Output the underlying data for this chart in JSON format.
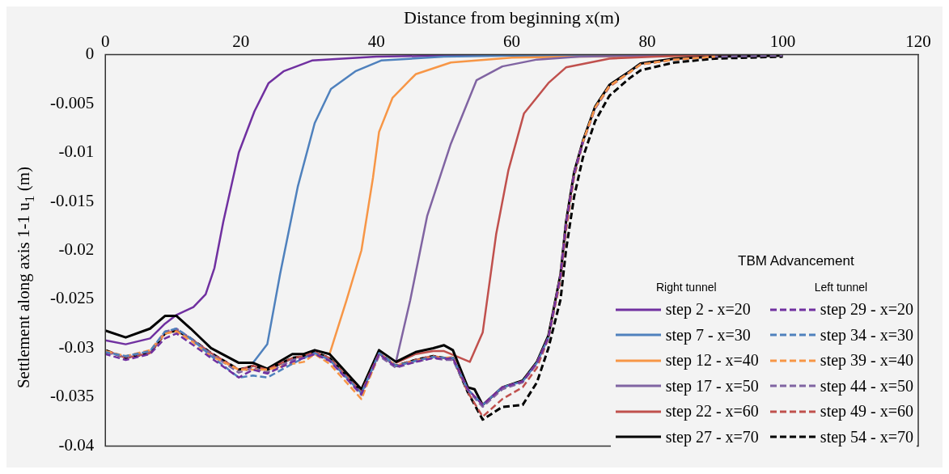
{
  "chart_data": {
    "type": "line",
    "xlabel": "Distance from beginning x(m)",
    "ylabel": "Settlement along axis 1-1 u$_{1}$ (m)",
    "legend_title": "TBM Advancement",
    "annotations": [
      "Right tunnel",
      "Left tunnel"
    ],
    "xlim": [
      0,
      120
    ],
    "xticks": [
      0,
      20,
      40,
      60,
      80,
      100,
      120
    ],
    "ylim": [
      -0.04,
      0
    ],
    "yticks": [
      0,
      -0.005,
      -0.01,
      -0.015,
      -0.02,
      -0.025,
      -0.03,
      -0.035,
      -0.04
    ],
    "grid": false,
    "legend": "bottom right",
    "marker": "none",
    "line_style": "solid",
    "series": [
      {
        "name": "step 2 - x=20",
        "color": "#7030a0",
        "x": [
          0,
          3,
          6.6,
          8.8,
          10.5,
          13,
          14.8,
          16.1,
          17.4,
          19.7,
          22,
          24.1,
          26.3,
          30.5,
          40,
          50,
          100
        ],
        "values": [
          -0.0292,
          -0.0296,
          -0.029,
          -0.0275,
          -0.0266,
          -0.0258,
          -0.0245,
          -0.0218,
          -0.0171,
          -0.01,
          -0.0058,
          -0.0029,
          -0.0017,
          -0.0006,
          -0.0002,
          -0.0001,
          -0.0001
        ]
      },
      {
        "name": "step 7 - x=30",
        "color": "#4f81bd",
        "x": [
          21.8,
          23.9,
          25.8,
          28.4,
          30.9,
          33.3,
          36.9,
          40.7,
          50,
          60,
          100
        ],
        "values": [
          -0.0315,
          -0.0296,
          -0.0224,
          -0.0135,
          -0.007,
          -0.0035,
          -0.0017,
          -0.0006,
          -0.0002,
          -0.0001,
          -0.0001
        ]
      },
      {
        "name": "step 12 - x=40",
        "color": "#f79646",
        "x": [
          33.1,
          35.6,
          37.8,
          39.5,
          40.4,
          42.4,
          45.8,
          51,
          60,
          70,
          100
        ],
        "values": [
          -0.0306,
          -0.0251,
          -0.02,
          -0.0126,
          -0.0079,
          -0.0044,
          -0.002,
          -0.0008,
          -0.0003,
          -0.0002,
          -0.0001
        ]
      },
      {
        "name": "step 17 - x=50",
        "color": "#8064a2",
        "x": [
          42.9,
          45,
          47.5,
          51,
          54.8,
          58.6,
          63.7,
          70,
          80,
          100
        ],
        "values": [
          -0.0314,
          -0.0251,
          -0.0165,
          -0.0091,
          -0.0026,
          -0.0012,
          -0.0005,
          -0.0002,
          -0.0001,
          -0.0001
        ]
      },
      {
        "name": "step 22 - x=60",
        "color": "#c0504d",
        "x": [
          42.9,
          45.8,
          48.4,
          50,
          53.8,
          55.7,
          57.7,
          59.5,
          61.8,
          65.4,
          68,
          74.4,
          85,
          100
        ],
        "values": [
          -0.0315,
          -0.0306,
          -0.0303,
          -0.0303,
          -0.0314,
          -0.0284,
          -0.0183,
          -0.0118,
          -0.006,
          -0.0029,
          -0.0013,
          -0.0004,
          -0.0001,
          -0.0001
        ]
      },
      {
        "name": "step 27 - x=70",
        "color": "#000000",
        "x": [
          0,
          3,
          6.6,
          8.8,
          10.5,
          12.6,
          15.6,
          19.7,
          21.8,
          23.9,
          27.6,
          29.3,
          30.9,
          33.1,
          37.8,
          40.4,
          42.9,
          45.8,
          48.4,
          50,
          51.3,
          53.5,
          54.5,
          55.7,
          58.6,
          61.6,
          63.7,
          65.4,
          67.2,
          68,
          69.2,
          70.5,
          72.3,
          74.4,
          77.4,
          79,
          84,
          90,
          100
        ],
        "values": [
          -0.0282,
          -0.0289,
          -0.028,
          -0.0267,
          -0.0267,
          -0.028,
          -0.03,
          -0.0315,
          -0.0315,
          -0.0321,
          -0.0306,
          -0.0306,
          -0.0302,
          -0.0306,
          -0.0342,
          -0.0302,
          -0.0314,
          -0.0304,
          -0.03,
          -0.0297,
          -0.0302,
          -0.034,
          -0.0342,
          -0.0358,
          -0.034,
          -0.0333,
          -0.0314,
          -0.0287,
          -0.0224,
          -0.0171,
          -0.012,
          -0.0088,
          -0.0053,
          -0.0031,
          -0.0017,
          -0.0009,
          -0.0004,
          -0.0002,
          -0.0001
        ]
      },
      {
        "name": "step 29 - x=20",
        "color": "#7030a0",
        "line_style": "dashed",
        "x": [
          0,
          3,
          6.6,
          8.8,
          10.5,
          12.6,
          15.6,
          19.7,
          21.8,
          23.9,
          27.6,
          29.3,
          30.9,
          33.1,
          37.8,
          40.4,
          42.9,
          45.8,
          48.4,
          50,
          51.3,
          53.5,
          55.7,
          58.6,
          61.6,
          63.7,
          65.4,
          67.2,
          68,
          69.2,
          70.5
        ],
        "values": [
          -0.0306,
          -0.0312,
          -0.0306,
          -0.029,
          -0.0285,
          -0.0295,
          -0.031,
          -0.033,
          -0.0322,
          -0.0326,
          -0.0314,
          -0.031,
          -0.0306,
          -0.0313,
          -0.0347,
          -0.0306,
          -0.0319,
          -0.0314,
          -0.031,
          -0.0311,
          -0.031,
          -0.0342,
          -0.0358,
          -0.034,
          -0.0334,
          -0.0315,
          -0.0289,
          -0.0225,
          -0.0172,
          -0.0121,
          -0.0089
        ]
      },
      {
        "name": "step 34 - x=30",
        "color": "#4f81bd",
        "line_style": "dashed",
        "x": [
          0,
          3,
          6.6,
          8.8,
          10.5,
          12.6,
          15.6,
          19.7,
          21.8,
          23.9,
          27.6,
          29.3,
          30.9,
          33.1,
          37.8,
          40.4,
          42.9,
          45.8,
          48.4,
          50,
          51.3,
          53.5,
          55.7,
          58.6,
          61.6,
          63.7,
          65.4
        ],
        "values": [
          -0.0304,
          -0.0308,
          -0.0303,
          -0.0283,
          -0.028,
          -0.029,
          -0.0308,
          -0.033,
          -0.0328,
          -0.033,
          -0.0316,
          -0.031,
          -0.0305,
          -0.0312,
          -0.0346,
          -0.0305,
          -0.0318,
          -0.0313,
          -0.0309,
          -0.031,
          -0.031,
          -0.0342,
          -0.0358,
          -0.034,
          -0.0334,
          -0.0315,
          -0.0289
        ]
      },
      {
        "name": "step 39 - x=40",
        "color": "#f79646",
        "line_style": "dashed",
        "x": [
          0,
          3,
          6.6,
          8.8,
          10.5,
          12.6,
          15.6,
          19.7,
          21.8,
          23.9,
          27.6,
          29.3,
          30.9,
          33.1,
          37.8,
          40.4,
          42.9,
          45.8,
          48.4,
          50,
          51.3,
          53.5,
          55.7,
          58.6,
          61.6,
          63.7,
          65.4,
          67.2,
          68,
          69.2,
          70.5,
          72.3,
          74.4,
          77.4,
          79,
          84,
          90
        ],
        "values": [
          -0.0303,
          -0.0308,
          -0.0302,
          -0.0285,
          -0.0283,
          -0.0292,
          -0.0308,
          -0.0322,
          -0.0322,
          -0.0322,
          -0.0316,
          -0.0314,
          -0.0306,
          -0.0316,
          -0.0352,
          -0.0306,
          -0.0318,
          -0.0313,
          -0.0309,
          -0.031,
          -0.0309,
          -0.0342,
          -0.0358,
          -0.034,
          -0.0334,
          -0.0315,
          -0.0289,
          -0.0225,
          -0.0172,
          -0.0121,
          -0.0089,
          -0.0054,
          -0.0032,
          -0.0018,
          -0.001,
          -0.0005,
          -0.0002
        ]
      },
      {
        "name": "step 44 - x=50",
        "color": "#8064a2",
        "line_style": "dashed",
        "x": [
          0,
          3,
          6.6,
          8.8,
          10.5,
          12.6,
          15.6,
          19.7,
          21.8,
          23.9,
          27.6,
          29.3,
          30.9,
          33.1,
          37.8,
          40.4,
          42.9,
          45.8,
          48.4,
          50,
          51.3,
          53.5,
          55.7,
          58.6,
          61.6,
          63.7,
          65.4,
          67.2,
          68,
          69.2,
          70.5,
          72.3,
          74.4,
          77.4,
          79,
          84,
          90,
          100
        ],
        "values": [
          -0.0304,
          -0.0309,
          -0.0303,
          -0.0283,
          -0.028,
          -0.029,
          -0.0306,
          -0.0325,
          -0.032,
          -0.0325,
          -0.0312,
          -0.031,
          -0.0306,
          -0.0312,
          -0.0348,
          -0.0308,
          -0.032,
          -0.0314,
          -0.031,
          -0.0312,
          -0.0312,
          -0.0343,
          -0.036,
          -0.0342,
          -0.0335,
          -0.0316,
          -0.029,
          -0.0226,
          -0.0173,
          -0.0122,
          -0.009,
          -0.0055,
          -0.0032,
          -0.0018,
          -0.001,
          -0.0005,
          -0.0002,
          -0.0001
        ]
      },
      {
        "name": "step 49 - x=60",
        "color": "#c0504d",
        "line_style": "dashed",
        "x": [
          0,
          3,
          6.6,
          8.8,
          10.5,
          12.6,
          15.6,
          19.7,
          21.8,
          23.9,
          27.6,
          29.3,
          30.9,
          33.1,
          37.8,
          40.4,
          42.9,
          45.8,
          48.4,
          50,
          51.3,
          53.5,
          55.7,
          58.6,
          61.6,
          63.7,
          65.4,
          67.2,
          68,
          69.2,
          70.5,
          72.3,
          74.4,
          77.4,
          79,
          84,
          90
        ],
        "values": [
          -0.0302,
          -0.031,
          -0.0305,
          -0.0285,
          -0.0282,
          -0.029,
          -0.0305,
          -0.0322,
          -0.0318,
          -0.0322,
          -0.031,
          -0.0308,
          -0.0304,
          -0.031,
          -0.0345,
          -0.0305,
          -0.0318,
          -0.0312,
          -0.0308,
          -0.031,
          -0.031,
          -0.0345,
          -0.037,
          -0.0352,
          -0.034,
          -0.032,
          -0.029,
          -0.023,
          -0.018,
          -0.0125,
          -0.009,
          -0.0055,
          -0.0033,
          -0.0018,
          -0.001,
          -0.0005,
          -0.0002
        ]
      },
      {
        "name": "step 54 - x=70",
        "color": "#000000",
        "line_style": "dashed",
        "x": [
          0,
          3,
          6.6,
          8.8,
          10.5,
          12.6,
          15.6,
          19.7,
          21.8,
          23.9,
          27.6,
          29.3,
          30.9,
          33.1,
          37.8,
          40.4,
          42.9,
          45.8,
          48.4,
          50,
          51.3,
          53.5,
          55.7,
          58.6,
          61.6,
          63.7,
          65.4,
          67.2,
          68,
          69.2,
          70.5,
          72.3,
          74.4,
          77.4,
          79,
          84,
          90,
          100
        ],
        "values": [
          -0.0302,
          -0.031,
          -0.0305,
          -0.0285,
          -0.0282,
          -0.029,
          -0.0305,
          -0.0322,
          -0.0318,
          -0.0322,
          -0.031,
          -0.0308,
          -0.0304,
          -0.031,
          -0.0345,
          -0.0305,
          -0.0318,
          -0.0312,
          -0.0308,
          -0.031,
          -0.031,
          -0.0345,
          -0.0373,
          -0.036,
          -0.0358,
          -0.0335,
          -0.03,
          -0.025,
          -0.02,
          -0.0145,
          -0.0105,
          -0.0068,
          -0.0042,
          -0.0024,
          -0.0016,
          -0.0008,
          -0.0004,
          -0.0002
        ]
      }
    ]
  }
}
